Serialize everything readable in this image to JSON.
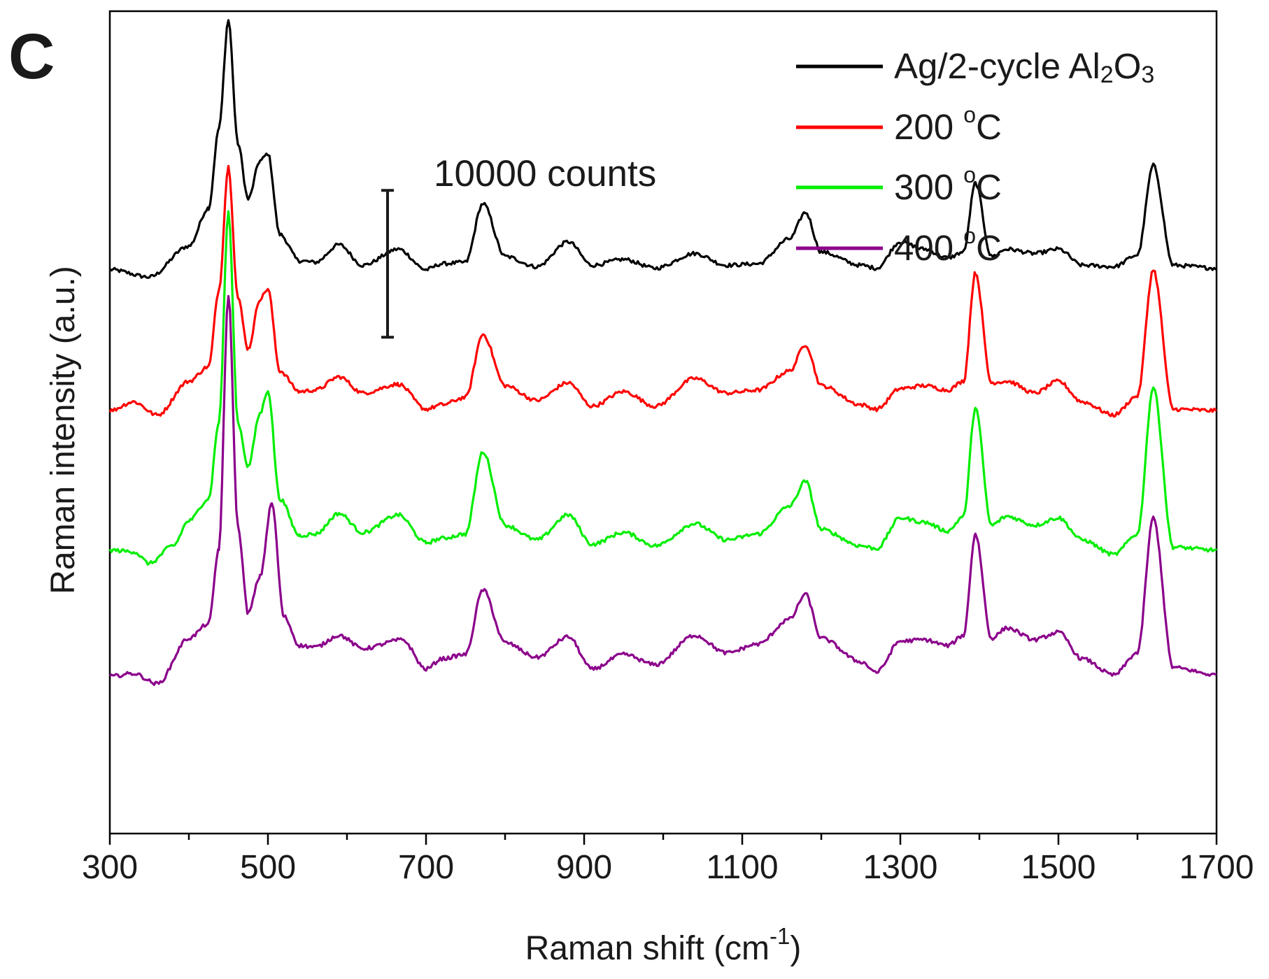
{
  "panel_label": "C",
  "chart_data": {
    "type": "line",
    "title": "",
    "xlabel": "Raman shift (cm",
    "xlabel_sup": "-1",
    "xlabel_close": ")",
    "ylabel": "Raman intensity (a.u.)",
    "xlim": [
      300,
      1700
    ],
    "x_ticks": [
      300,
      500,
      700,
      900,
      1100,
      1300,
      1500,
      1700
    ],
    "x_tick_labels": [
      "300",
      "500",
      "700",
      "900",
      "1100",
      "1300",
      "1500",
      "1700"
    ],
    "x_minor_ticks": [
      400,
      600,
      800,
      1000,
      1200,
      1400,
      1600
    ],
    "y_unit": "counts",
    "ylim": [
      0,
      56000
    ],
    "scale_bar": {
      "value": 10000,
      "label": "10000 counts",
      "from": 43800,
      "to": 33800
    },
    "legend_position": "top-right",
    "peaks_cm1": [
      450,
      500,
      590,
      665,
      720,
      772,
      880,
      950,
      1040,
      1160,
      1180,
      1300,
      1330,
      1395,
      1435,
      1470,
      1500,
      1620
    ],
    "series": [
      {
        "name": "Ag/2-cycle Al2O3",
        "legend_main": "Ag/2-cycle Al",
        "legend_sub1": "2",
        "legend_mid": "O",
        "legend_sub2": "3",
        "color": "#000000",
        "baseline": 38400,
        "x": [
          300,
          350,
          400,
          425,
          438,
          450,
          462,
          475,
          490,
          500,
          515,
          540,
          560,
          590,
          620,
          665,
          700,
          720,
          750,
          772,
          800,
          840,
          880,
          910,
          950,
          990,
          1040,
          1080,
          1120,
          1160,
          1180,
          1200,
          1250,
          1270,
          1300,
          1330,
          1360,
          1380,
          1395,
          1415,
          1435,
          1470,
          1500,
          1530,
          1570,
          1600,
          1620,
          1645,
          1700
        ],
        "y": [
          38400,
          37900,
          40000,
          42600,
          48000,
          55400,
          47000,
          43200,
          45800,
          46300,
          40800,
          39000,
          38900,
          40100,
          38700,
          39800,
          38400,
          38800,
          38900,
          42900,
          39300,
          38600,
          40300,
          38700,
          39100,
          38500,
          39500,
          38700,
          38800,
          40500,
          42300,
          39600,
          38700,
          38500,
          40300,
          39800,
          39200,
          39600,
          44300,
          39300,
          39800,
          39500,
          39800,
          38700,
          38600,
          39400,
          45500,
          38700,
          38500
        ]
      },
      {
        "name": "200 °C",
        "legend_main": "200 ",
        "legend_sup": "o",
        "legend_end": "C",
        "color": "#ff0000",
        "baseline": 28800,
        "x": [
          300,
          330,
          360,
          400,
          425,
          438,
          450,
          462,
          475,
          490,
          500,
          515,
          540,
          560,
          590,
          620,
          665,
          700,
          720,
          750,
          772,
          800,
          840,
          880,
          910,
          950,
          990,
          1040,
          1080,
          1120,
          1160,
          1180,
          1200,
          1250,
          1270,
          1300,
          1330,
          1360,
          1380,
          1395,
          1415,
          1435,
          1470,
          1500,
          1530,
          1570,
          1600,
          1620,
          1645,
          1700
        ],
        "y": [
          28800,
          29400,
          28500,
          30800,
          31800,
          37000,
          45400,
          36500,
          33000,
          36400,
          37100,
          31500,
          30100,
          30200,
          31100,
          30000,
          30600,
          28900,
          29200,
          29700,
          34000,
          30500,
          29500,
          30700,
          29100,
          30100,
          29100,
          31000,
          30000,
          30200,
          31500,
          33300,
          30500,
          29200,
          28900,
          30300,
          30500,
          30200,
          30800,
          38200,
          30700,
          30800,
          30000,
          30800,
          29400,
          28500,
          29800,
          38400,
          28900,
          28800
        ]
      },
      {
        "name": "300 °C",
        "legend_main": "300 ",
        "legend_sup": "o",
        "legend_end": "C",
        "color": "#00ee00",
        "baseline": 19300,
        "x": [
          300,
          330,
          350,
          380,
          400,
          425,
          438,
          450,
          462,
          475,
          490,
          500,
          515,
          540,
          560,
          590,
          620,
          665,
          700,
          720,
          750,
          772,
          800,
          840,
          880,
          910,
          950,
          990,
          1040,
          1080,
          1120,
          1160,
          1180,
          1200,
          1250,
          1270,
          1300,
          1330,
          1360,
          1380,
          1395,
          1415,
          1435,
          1470,
          1500,
          1530,
          1570,
          1600,
          1620,
          1645,
          1700
        ],
        "y": [
          19300,
          19200,
          18400,
          19600,
          21300,
          22800,
          28000,
          42300,
          28000,
          25000,
          28600,
          30200,
          22800,
          20300,
          20400,
          21800,
          20500,
          21700,
          19800,
          20100,
          20400,
          26000,
          21000,
          20000,
          21700,
          19700,
          20500,
          19600,
          21100,
          20000,
          20400,
          22300,
          24000,
          20700,
          19600,
          19400,
          21500,
          21200,
          20600,
          21600,
          29000,
          21000,
          21600,
          21000,
          21500,
          20000,
          19000,
          20400,
          30400,
          19500,
          19300
        ]
      },
      {
        "name": "400 °C",
        "legend_main": "400 ",
        "legend_sup": "o",
        "legend_end": "C",
        "color": "#8b008b",
        "baseline": 10700,
        "x": [
          300,
          330,
          360,
          400,
          425,
          438,
          450,
          462,
          475,
          490,
          505,
          520,
          540,
          560,
          590,
          620,
          670,
          700,
          720,
          750,
          772,
          800,
          840,
          880,
          910,
          950,
          990,
          1040,
          1080,
          1120,
          1160,
          1180,
          1200,
          1250,
          1270,
          1300,
          1330,
          1360,
          1380,
          1395,
          1415,
          1435,
          1470,
          1500,
          1530,
          1570,
          1600,
          1620,
          1645,
          1700
        ],
        "y": [
          10700,
          10900,
          10200,
          13300,
          14300,
          19400,
          36700,
          20900,
          15000,
          17500,
          22500,
          14800,
          12800,
          12700,
          13500,
          12600,
          13200,
          11200,
          11900,
          12200,
          16600,
          13000,
          12000,
          13400,
          11200,
          12200,
          11500,
          13500,
          12300,
          12900,
          14600,
          16300,
          13300,
          11700,
          11000,
          13100,
          13200,
          12800,
          13500,
          20400,
          13300,
          14000,
          13200,
          13700,
          11900,
          10800,
          12300,
          21500,
          11300,
          10800
        ]
      }
    ]
  }
}
